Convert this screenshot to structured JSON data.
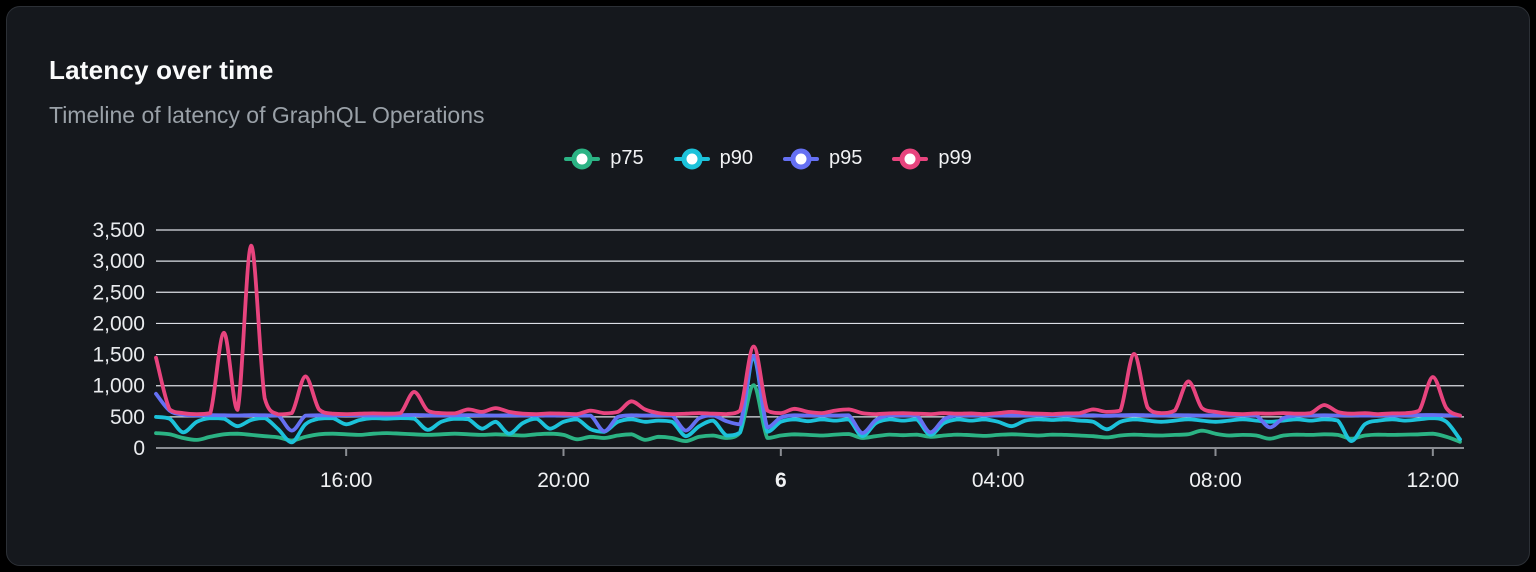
{
  "card": {
    "title": "Latency over time",
    "subtitle": "Timeline of latency of GraphQL Operations"
  },
  "legend": {
    "position": "top-center",
    "items": [
      {
        "label": "p75",
        "color": "#2bb384"
      },
      {
        "label": "p90",
        "color": "#1cc2da"
      },
      {
        "label": "p95",
        "color": "#6570f3"
      },
      {
        "label": "p99",
        "color": "#e8447e"
      }
    ]
  },
  "colors": {
    "background": "#000000",
    "card_bg": "#15181d",
    "card_border": "#2c3036",
    "title": "#fafbfc",
    "subtitle": "#9aa1a8",
    "grid": "#dcdfe6",
    "axis": "#8a8d93",
    "tick_text": "#e9ebee"
  },
  "chart_data": {
    "type": "line",
    "title": "Latency over time",
    "subtitle": "Timeline of latency of GraphQL Operations",
    "grid": true,
    "smooth": true,
    "legend_position": "top",
    "ylim": [
      0,
      3500
    ],
    "y_tick_step": 500,
    "y_tick_labels": [
      "0",
      "500",
      "1,000",
      "1,500",
      "2,000",
      "2,500",
      "3,000",
      "3,500"
    ],
    "x_axis": {
      "unit": "time of day",
      "start_hour": 12.5,
      "end_hour": 36.5,
      "sample_interval_minutes": 15,
      "ticks": [
        {
          "hour": 16,
          "label": "16:00",
          "bold": false
        },
        {
          "hour": 20,
          "label": "20:00",
          "bold": false
        },
        {
          "hour": 24,
          "label": "6",
          "bold": true
        },
        {
          "hour": 28,
          "label": "04:00",
          "bold": false
        },
        {
          "hour": 32,
          "label": "08:00",
          "bold": false
        },
        {
          "hour": 36,
          "label": "12:00",
          "bold": false
        }
      ]
    },
    "series": [
      {
        "name": "p75",
        "color": "#2bb384",
        "values": [
          240,
          220,
          160,
          130,
          180,
          220,
          230,
          210,
          190,
          170,
          120,
          180,
          220,
          230,
          220,
          210,
          230,
          240,
          230,
          220,
          210,
          220,
          230,
          220,
          210,
          220,
          210,
          200,
          220,
          230,
          210,
          140,
          180,
          160,
          200,
          220,
          130,
          180,
          160,
          110,
          180,
          200,
          160,
          250,
          1010,
          160,
          200,
          220,
          210,
          200,
          215,
          225,
          160,
          190,
          215,
          205,
          215,
          180,
          200,
          215,
          205,
          195,
          210,
          220,
          210,
          200,
          215,
          210,
          200,
          190,
          170,
          200,
          215,
          205,
          200,
          210,
          220,
          280,
          230,
          200,
          210,
          200,
          150,
          200,
          215,
          210,
          220,
          210,
          150,
          200,
          215,
          210,
          215,
          220,
          230,
          180,
          100
        ]
      },
      {
        "name": "p90",
        "color": "#1cc2da",
        "values": [
          500,
          470,
          250,
          420,
          480,
          470,
          350,
          450,
          480,
          300,
          90,
          380,
          470,
          480,
          380,
          450,
          480,
          470,
          480,
          470,
          290,
          420,
          470,
          460,
          310,
          420,
          230,
          400,
          470,
          310,
          420,
          460,
          300,
          260,
          420,
          460,
          420,
          440,
          420,
          190,
          350,
          440,
          200,
          250,
          1450,
          260,
          420,
          460,
          430,
          460,
          440,
          460,
          190,
          400,
          460,
          440,
          460,
          210,
          400,
          460,
          440,
          460,
          420,
          350,
          440,
          460,
          450,
          460,
          440,
          420,
          300,
          420,
          460,
          440,
          420,
          440,
          460,
          440,
          420,
          440,
          460,
          440,
          420,
          440,
          460,
          440,
          460,
          440,
          110,
          380,
          440,
          460,
          440,
          460,
          480,
          420,
          140
        ]
      },
      {
        "name": "p95",
        "color": "#6570f3",
        "values": [
          870,
          600,
          535,
          525,
          528,
          525,
          522,
          528,
          525,
          520,
          280,
          520,
          525,
          522,
          528,
          525,
          522,
          525,
          528,
          530,
          525,
          522,
          525,
          528,
          525,
          522,
          525,
          522,
          525,
          520,
          525,
          522,
          520,
          270,
          500,
          525,
          522,
          525,
          520,
          280,
          480,
          525,
          430,
          380,
          1480,
          330,
          490,
          525,
          522,
          525,
          522,
          525,
          240,
          450,
          525,
          522,
          525,
          250,
          460,
          525,
          522,
          525,
          520,
          525,
          522,
          525,
          522,
          525,
          522,
          525,
          515,
          525,
          530,
          525,
          522,
          528,
          525,
          522,
          525,
          522,
          525,
          522,
          330,
          480,
          525,
          522,
          525,
          522,
          525,
          520,
          525,
          522,
          525,
          528,
          530,
          525,
          520
        ]
      },
      {
        "name": "p99",
        "color": "#e8447e",
        "values": [
          1450,
          620,
          560,
          545,
          560,
          1850,
          610,
          3250,
          800,
          540,
          560,
          1150,
          620,
          550,
          545,
          550,
          555,
          550,
          560,
          900,
          600,
          560,
          555,
          620,
          580,
          640,
          580,
          550,
          545,
          555,
          550,
          545,
          600,
          560,
          580,
          750,
          620,
          560,
          545,
          550,
          560,
          550,
          545,
          600,
          1630,
          600,
          560,
          630,
          580,
          560,
          600,
          620,
          560,
          545,
          555,
          560,
          550,
          545,
          560,
          550,
          555,
          545,
          560,
          580,
          560,
          550,
          545,
          555,
          560,
          620,
          580,
          600,
          1510,
          650,
          560,
          600,
          1070,
          640,
          580,
          550,
          545,
          555,
          550,
          560,
          550,
          560,
          690,
          580,
          550,
          560,
          545,
          555,
          560,
          600,
          1140,
          640,
          520
        ]
      }
    ]
  }
}
